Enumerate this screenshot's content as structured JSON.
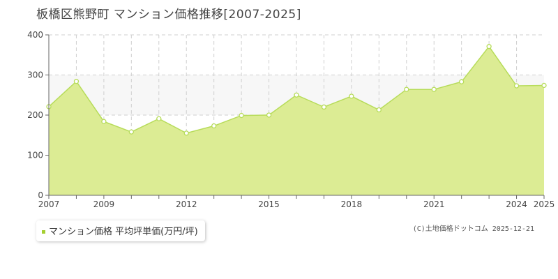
{
  "title": "板橋区熊野町 マンション価格推移[2007-2025]",
  "legend": {
    "label": "マンション価格 平均坪単価(万円/坪)",
    "color": "#a5cf32"
  },
  "copyright": "(C)土地価格ドットコム 2025-12-21",
  "chart_data": {
    "type": "area",
    "title": "板橋区熊野町 マンション価格推移[2007-2025]",
    "series": [
      {
        "name": "マンション価格 平均坪単価(万円/坪)",
        "x": [
          2007,
          2008,
          2009,
          2010,
          2011,
          2012,
          2013,
          2014,
          2015,
          2016,
          2017,
          2018,
          2019,
          2020,
          2021,
          2022,
          2023,
          2024,
          2025
        ],
        "values": [
          221,
          284,
          184,
          158,
          191,
          155,
          173,
          199,
          200,
          250,
          220,
          247,
          213,
          264,
          264,
          283,
          371,
          273,
          274
        ]
      }
    ],
    "xlim": [
      2007,
      2025
    ],
    "ylim": [
      0,
      400
    ],
    "y_ticks": [
      0,
      100,
      200,
      300,
      400
    ],
    "x_tick_labels": [
      "2007",
      "2009",
      "2012",
      "2015",
      "2018",
      "2021",
      "2024",
      "2025"
    ],
    "x_tick_values": [
      2007,
      2009,
      2012,
      2015,
      2018,
      2021,
      2024,
      2025
    ],
    "grid": true,
    "fill_color": "#dcec94",
    "line_color": "#b7dc5a",
    "legend_position": "bottom-left"
  }
}
